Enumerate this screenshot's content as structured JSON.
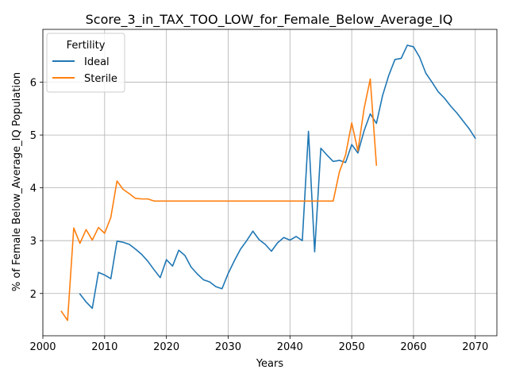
{
  "chart_data": {
    "type": "line",
    "title": "Score_3_in_TAX_TOO_LOW_for_Female_Below_Average_IQ",
    "xlabel": "Years",
    "ylabel": "% of Female Below_Average_IQ Population",
    "xlim": [
      2000,
      2073.5
    ],
    "ylim": [
      1.2,
      7.0
    ],
    "xticks": [
      2000,
      2010,
      2020,
      2030,
      2040,
      2050,
      2060,
      2070
    ],
    "yticks": [
      2,
      3,
      4,
      5,
      6
    ],
    "grid": true,
    "legend": {
      "title": "Fertility",
      "placement": "top-left"
    },
    "series": [
      {
        "name": "Ideal",
        "color": "#1f77b4",
        "x": [
          2006,
          2007,
          2008,
          2009,
          2010,
          2011,
          2012,
          2013,
          2014,
          2015,
          2016,
          2017,
          2018,
          2019,
          2020,
          2021,
          2022,
          2023,
          2024,
          2025,
          2026,
          2027,
          2028,
          2029,
          2030,
          2031,
          2032,
          2033,
          2034,
          2035,
          2036,
          2037,
          2038,
          2039,
          2040,
          2041,
          2042,
          2043,
          2044,
          2045,
          2046,
          2047,
          2048,
          2049,
          2050,
          2051,
          2052,
          2053,
          2054,
          2055,
          2056,
          2057,
          2058,
          2059,
          2060,
          2061,
          2062,
          2063,
          2064,
          2065,
          2066,
          2067,
          2068,
          2069,
          2070
        ],
        "y": [
          1.99,
          1.84,
          1.72,
          2.4,
          2.35,
          2.28,
          2.99,
          2.97,
          2.93,
          2.84,
          2.74,
          2.61,
          2.45,
          2.3,
          2.64,
          2.52,
          2.82,
          2.72,
          2.5,
          2.37,
          2.26,
          2.22,
          2.13,
          2.09,
          2.38,
          2.62,
          2.84,
          3.0,
          3.18,
          3.02,
          2.93,
          2.8,
          2.96,
          3.06,
          3.01,
          3.08,
          3.0,
          5.07,
          2.79,
          4.75,
          4.62,
          4.5,
          4.52,
          4.48,
          4.82,
          4.66,
          5.08,
          5.4,
          5.22,
          5.75,
          6.13,
          6.43,
          6.45,
          6.7,
          6.67,
          6.47,
          6.17,
          6.0,
          5.82,
          5.7,
          5.55,
          5.42,
          5.27,
          5.12,
          4.94
        ]
      },
      {
        "name": "Sterile",
        "color": "#ff7f0e",
        "x": [
          2003,
          2004,
          2005,
          2006,
          2007,
          2008,
          2009,
          2010,
          2011,
          2012,
          2013,
          2014,
          2015,
          2016,
          2017,
          2018,
          2019,
          2020,
          2030,
          2040,
          2045,
          2046,
          2047,
          2048,
          2049,
          2050,
          2051,
          2052,
          2053,
          2054
        ],
        "y": [
          1.66,
          1.49,
          3.24,
          2.95,
          3.21,
          3.01,
          3.25,
          3.14,
          3.44,
          4.13,
          3.97,
          3.89,
          3.8,
          3.79,
          3.79,
          3.75,
          3.75,
          3.75,
          3.75,
          3.75,
          3.75,
          3.75,
          3.75,
          4.3,
          4.62,
          5.23,
          4.7,
          5.5,
          6.06,
          4.43
        ]
      }
    ]
  }
}
